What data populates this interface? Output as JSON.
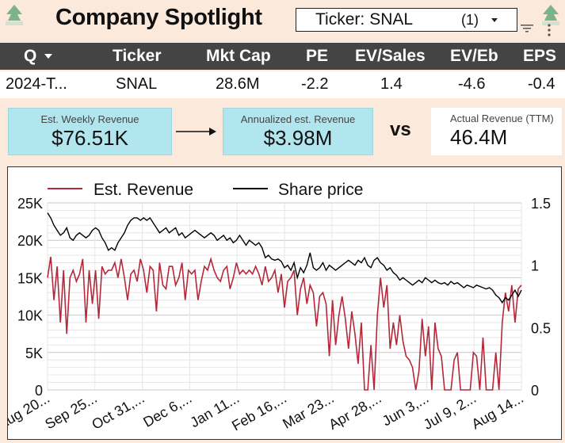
{
  "header": {
    "title": "Company Spotlight",
    "ticker_filter": {
      "label": "Ticker:",
      "value": "SNAL",
      "count": "(1)"
    }
  },
  "table": {
    "columns": [
      "Q",
      "Ticker",
      "Mkt Cap",
      "PE",
      "EV/Sales",
      "EV/Eb",
      "EPS"
    ],
    "row": [
      "2024-T...",
      "SNAL",
      "28.6M",
      "-2.2",
      "1.4",
      "-4.6",
      "-0.4"
    ]
  },
  "kpis": {
    "weekly": {
      "label": "Est. Weekly Revenue",
      "value": "$76.51K"
    },
    "annualized": {
      "label": "Annualized est. Revenue",
      "value": "$3.98M"
    },
    "vs": "vs",
    "actual": {
      "label": "Actual Revenue (TTM)",
      "value": "46.4M"
    }
  },
  "colors": {
    "revenue": "#b5283a",
    "price": "#000000",
    "kpi_bg": "#b2e6ee",
    "page_bg": "#fbe9dc",
    "table_head": "#444444"
  },
  "icons": [
    "logo-icon",
    "filter-icon",
    "kebab-menu-icon",
    "dropdown-caret-icon",
    "arrow-right-icon"
  ],
  "chart_data": {
    "type": "line",
    "legend_position": "top-left",
    "grid": true,
    "x_ticks": [
      "Aug 20...",
      "Sep 25...",
      "Oct 31,...",
      "Dec 6,...",
      "Jan 11...",
      "Feb 16,...",
      "Mar 23...",
      "Apr 28,...",
      "Jun 3,...",
      "Jul 9, 2...",
      "Aug 14..."
    ],
    "y_left": {
      "ticks": [
        "0",
        "5K",
        "10K",
        "15K",
        "20K",
        "25K"
      ],
      "range": [
        0,
        25000
      ]
    },
    "y_right": {
      "ticks": [
        "0",
        "0.5",
        "1",
        "1.5"
      ],
      "range": [
        0,
        1.5
      ]
    },
    "series": [
      {
        "name": "Est. Revenue",
        "axis": "left",
        "values": [
          15000,
          17800,
          12000,
          16500,
          9000,
          16000,
          7500,
          15000,
          16000,
          14500,
          15500,
          17500,
          9000,
          16000,
          11500,
          16000,
          9500,
          16500,
          15500,
          16000,
          16000,
          17000,
          15000,
          17500,
          15000,
          12000,
          15500,
          16000,
          14500,
          17500,
          16000,
          13000,
          16500,
          16000,
          10500,
          17000,
          14000,
          13500,
          16500,
          16500,
          14000,
          15000,
          17000,
          12000,
          16000,
          15500,
          16000,
          12000,
          14500,
          16500,
          16000,
          17500,
          16000,
          15000,
          14500,
          16000,
          16500,
          13500,
          15000,
          17000,
          15500,
          16000,
          15500,
          16000,
          15500,
          16500,
          15500,
          14000,
          16500,
          14500,
          15000,
          16000,
          13000,
          15500,
          11000,
          14500,
          15000,
          16000,
          10000,
          13500,
          15000,
          11500,
          14000,
          13000,
          8500,
          12500,
          13000,
          11500,
          4500,
          12000,
          6000,
          10000,
          12500,
          9500,
          5500,
          10500,
          7500,
          3500,
          9000,
          0,
          0,
          6000,
          0,
          10000,
          15000,
          11000,
          14000,
          5500,
          9000,
          6000,
          10000,
          6500,
          4500,
          4000,
          3000,
          0,
          2500,
          9500,
          4500,
          8500,
          0,
          9000,
          5500,
          4500,
          0,
          0,
          0,
          4000,
          5000,
          0,
          0,
          0,
          0,
          5000,
          4500,
          0,
          7000,
          0,
          0,
          0,
          5000,
          0,
          9000,
          13000,
          10500,
          14000,
          9000,
          13500,
          14000
        ]
      },
      {
        "name": "Share price",
        "axis": "right",
        "values": [
          1.42,
          1.38,
          1.32,
          1.28,
          1.24,
          1.26,
          1.3,
          1.22,
          1.2,
          1.24,
          1.26,
          1.24,
          1.22,
          1.24,
          1.28,
          1.3,
          1.28,
          1.22,
          1.18,
          1.12,
          1.14,
          1.12,
          1.18,
          1.22,
          1.26,
          1.32,
          1.36,
          1.38,
          1.38,
          1.36,
          1.38,
          1.36,
          1.38,
          1.34,
          1.3,
          1.26,
          1.28,
          1.3,
          1.26,
          1.28,
          1.3,
          1.24,
          1.26,
          1.22,
          1.24,
          1.26,
          1.28,
          1.26,
          1.24,
          1.22,
          1.24,
          1.26,
          1.24,
          1.2,
          1.22,
          1.24,
          1.2,
          1.22,
          1.18,
          1.2,
          1.24,
          1.2,
          1.16,
          1.2,
          1.18,
          1.16,
          1.18,
          1.14,
          1.06,
          1.08,
          1.05,
          1.04,
          1.05,
          1.03,
          0.98,
          1.0,
          0.96,
          1.02,
          0.9,
          0.98,
          0.94,
          1.0,
          1.1,
          0.98,
          0.96,
          0.98,
          1.02,
          0.96,
          1.0,
          0.98,
          0.96,
          0.98,
          1.0,
          1.02,
          1.04,
          1.02,
          1.0,
          1.04,
          1.02,
          1.06,
          1.0,
          0.98,
          1.04,
          1.06,
          1.02,
          1.0,
          0.96,
          0.98,
          0.94,
          0.92,
          0.88,
          0.9,
          0.88,
          0.86,
          0.84,
          0.86,
          0.88,
          0.86,
          0.9,
          0.88,
          0.86,
          0.88,
          0.86,
          0.85,
          0.86,
          0.84,
          0.87,
          0.85,
          0.86,
          0.84,
          0.82,
          0.84,
          0.83,
          0.82,
          0.84,
          0.83,
          0.82,
          0.81,
          0.82,
          0.8,
          0.76,
          0.74,
          0.7,
          0.74,
          0.72,
          0.76,
          0.8,
          0.75,
          0.8
        ]
      }
    ]
  }
}
